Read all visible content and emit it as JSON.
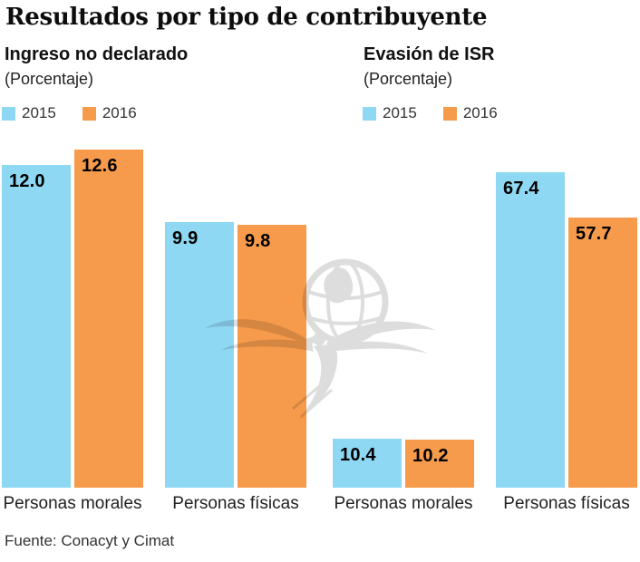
{
  "page": {
    "title": "Resultados por tipo de contribuyente",
    "source": "Fuente: Conacyt y Cimat",
    "background": "#ffffff"
  },
  "colors": {
    "series_2015": "#8FD8F4",
    "series_2016": "#F69B4C",
    "title_text": "#0d0d0d",
    "body_text": "#222222",
    "watermark": "#e2e2e2"
  },
  "watermark": {
    "icon": "eagle-globe-logo"
  },
  "chart_data": [
    {
      "type": "bar",
      "title": "Ingreso no declarado",
      "subtitle": "(Porcentaje)",
      "categories": [
        "Personas morales",
        "Personas físicas"
      ],
      "series": [
        {
          "name": "2015",
          "color": "#8FD8F4",
          "values": [
            12.0,
            9.9
          ]
        },
        {
          "name": "2016",
          "color": "#F69B4C",
          "values": [
            12.6,
            9.8
          ]
        }
      ],
      "ylim": [
        0,
        13.5
      ],
      "grid": false,
      "legend_position": "top-left",
      "value_labels": "inside-top",
      "value_decimals": 1
    },
    {
      "type": "bar",
      "title": "Evasión de ISR",
      "subtitle": "(Porcentaje)",
      "categories": [
        "Personas morales",
        "Personas físicas"
      ],
      "series": [
        {
          "name": "2015",
          "color": "#8FD8F4",
          "values": [
            10.4,
            67.4
          ]
        },
        {
          "name": "2016",
          "color": "#F69B4C",
          "values": [
            10.2,
            57.7
          ]
        }
      ],
      "ylim": [
        0,
        77.5
      ],
      "grid": false,
      "legend_position": "top-left",
      "value_labels": "inside-top",
      "value_decimals": 1
    }
  ]
}
